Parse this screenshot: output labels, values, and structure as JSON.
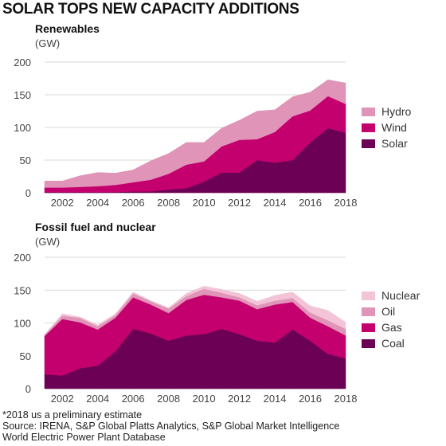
{
  "title": "SOLAR TOPS NEW CAPACITY ADDITIONS",
  "notes": [
    "*2018 us a preliminary estimate",
    "Source: IRENA, S&P Global Platts Analytics, S&P Global Market Intelligence",
    "World Electric Power Plant Database"
  ],
  "chart_data": [
    {
      "type": "area",
      "stacked": true,
      "title": "Renewables",
      "ylabel": "(GW)",
      "xlabel": "",
      "x": [
        2001,
        2002,
        2003,
        2004,
        2005,
        2006,
        2007,
        2008,
        2009,
        2010,
        2011,
        2012,
        2013,
        2014,
        2015,
        2016,
        2017,
        2018
      ],
      "ylim": [
        0,
        200
      ],
      "xticks": [
        2002,
        2004,
        2006,
        2008,
        2010,
        2012,
        2014,
        2016,
        2018
      ],
      "yticks": [
        0,
        50,
        100,
        150,
        200
      ],
      "legend": "right",
      "series": [
        {
          "name": "Solar",
          "color": "#6b0055",
          "values": [
            1,
            1,
            1,
            1,
            1,
            2,
            2,
            5,
            7,
            17,
            31,
            31,
            50,
            46,
            50,
            77,
            99,
            92
          ]
        },
        {
          "name": "Wind",
          "color": "#c4006e",
          "values": [
            7,
            7,
            8,
            9,
            11,
            14,
            18,
            24,
            36,
            31,
            40,
            50,
            32,
            47,
            67,
            49,
            49,
            44
          ]
        },
        {
          "name": "Hydro",
          "color": "#e094b7",
          "values": [
            10,
            10,
            17,
            21,
            18,
            19,
            29,
            31,
            34,
            29,
            28,
            30,
            43,
            34,
            30,
            28,
            25,
            32
          ]
        }
      ]
    },
    {
      "type": "area",
      "stacked": true,
      "title": "Fossil fuel and nuclear",
      "ylabel": "(GW)",
      "xlabel": "",
      "x": [
        2001,
        2002,
        2003,
        2004,
        2005,
        2006,
        2007,
        2008,
        2009,
        2010,
        2011,
        2012,
        2013,
        2014,
        2015,
        2016,
        2017,
        2018
      ],
      "ylim": [
        0,
        200
      ],
      "xticks": [
        2002,
        2004,
        2006,
        2008,
        2010,
        2012,
        2014,
        2016,
        2018
      ],
      "yticks": [
        0,
        50,
        100,
        150,
        200
      ],
      "legend": "right",
      "series": [
        {
          "name": "Coal",
          "color": "#6b0055",
          "values": [
            22,
            20,
            31,
            35,
            57,
            91,
            84,
            73,
            81,
            83,
            91,
            83,
            73,
            70,
            90,
            73,
            53,
            46
          ]
        },
        {
          "name": "Gas",
          "color": "#c4006e",
          "values": [
            58,
            86,
            70,
            55,
            51,
            48,
            44,
            42,
            54,
            60,
            48,
            51,
            48,
            58,
            42,
            35,
            42,
            35
          ]
        },
        {
          "name": "Oil",
          "color": "#e094b7",
          "values": [
            2,
            5,
            7,
            5,
            4,
            6,
            5,
            7,
            6,
            9,
            7,
            5,
            6,
            6,
            6,
            8,
            9,
            10
          ]
        },
        {
          "name": "Nuclear",
          "color": "#f3c4d8",
          "values": [
            0,
            3,
            1,
            2,
            2,
            2,
            1,
            1,
            4,
            4,
            5,
            6,
            6,
            8,
            9,
            10,
            15,
            10
          ]
        }
      ]
    }
  ]
}
